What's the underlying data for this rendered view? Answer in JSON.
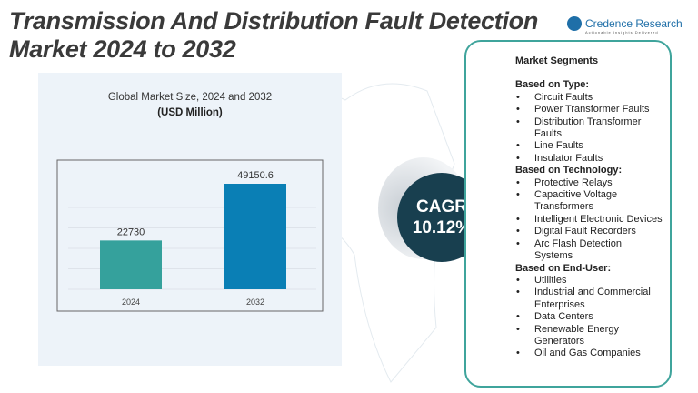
{
  "header": {
    "title_line1": "Transmission And Distribution Fault Detection",
    "title_line2": "Market 2024 to 2032"
  },
  "logo": {
    "name": "Credence Research",
    "tagline": "Actionable Insights Delivered"
  },
  "colors": {
    "bar_2024": "#35a19c",
    "bar_2032": "#0a7fb5",
    "cagr_bg": "#183f4f",
    "accent_border": "#3fa49c"
  },
  "chart_data": {
    "type": "bar",
    "title": "Global Market Size, 2024 and 2032",
    "subtitle": "(USD Million)",
    "categories": [
      "2024",
      "2032"
    ],
    "values": [
      22730,
      49150.6
    ],
    "value_labels": [
      "22730",
      "49150.6"
    ],
    "grid": true
  },
  "cagr": {
    "label": "CAGR",
    "value": "10.12%"
  },
  "segments": {
    "title": "Market Segments",
    "groups": [
      {
        "heading": "Based on Type:",
        "items": [
          "Circuit Faults",
          "Power Transformer Faults",
          "Distribution Transformer Faults",
          "Line Faults",
          "Insulator Faults"
        ]
      },
      {
        "heading": "Based on Technology:",
        "items": [
          "Protective Relays",
          "Capacitive Voltage Transformers",
          "Intelligent Electronic Devices",
          "Digital Fault Recorders",
          "Arc Flash Detection Systems"
        ]
      },
      {
        "heading": "Based on End-User:",
        "items": [
          "Utilities",
          "Industrial and Commercial Enterprises",
          "Data Centers",
          "Renewable Energy Generators",
          "Oil and Gas Companies"
        ]
      }
    ]
  }
}
